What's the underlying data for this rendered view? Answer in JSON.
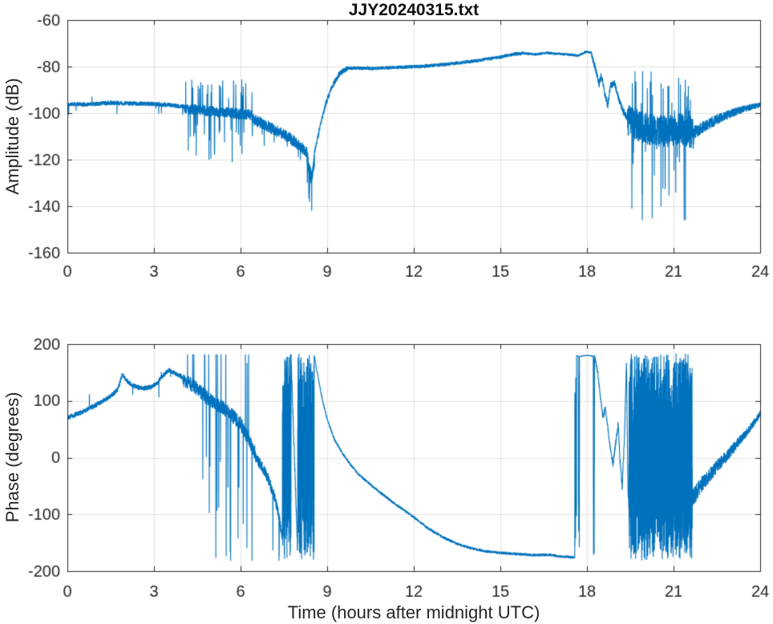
{
  "figure": {
    "palette": {
      "background": "#ffffff",
      "line": "#0072bd",
      "axis": "#242424",
      "grid": "#e2e2e2",
      "text": "#252525"
    }
  },
  "chart_data": [
    {
      "type": "line",
      "title": "JJY20240315.txt",
      "xlabel": "",
      "ylabel": "Amplitude (dB)",
      "xlim": [
        0,
        24
      ],
      "ylim": [
        -160,
        -60
      ],
      "xticks": [
        0,
        3,
        6,
        9,
        12,
        15,
        18,
        21,
        24
      ],
      "yticks": [
        -160,
        -140,
        -120,
        -100,
        -80,
        -60
      ],
      "grid": true,
      "line_color": "#0072bd",
      "segments": [
        {
          "t0": 0,
          "t1": 4.05,
          "base": [
            [
              0,
              -96
            ],
            [
              0.7,
              -96.3
            ],
            [
              1.5,
              -95.6
            ],
            [
              2.3,
              -95.9
            ],
            [
              3.1,
              -96.2
            ],
            [
              3.6,
              -96.6
            ],
            [
              4.05,
              -97.3
            ]
          ],
          "noise": 1.0,
          "spikes": {
            "p": 0.005,
            "lo": 2,
            "hi": 6,
            "dir": -1
          },
          "spikes2": {
            "p": 0.003,
            "lo": 2,
            "hi": 5,
            "dir": 1
          }
        },
        {
          "t0": 4.05,
          "t1": 6.4,
          "base": [
            [
              4.05,
              -98
            ],
            [
              5.2,
              -99.5
            ],
            [
              6.4,
              -100.8
            ]
          ],
          "noise": 2.4,
          "spikes": {
            "p": 0.045,
            "lo": 7,
            "hi": 14,
            "dir": 1
          },
          "spikes2": {
            "p": 0.04,
            "lo": 7,
            "hi": 22,
            "dir": -1
          },
          "clamp": [
            -130,
            -84
          ]
        },
        {
          "t0": 6.4,
          "t1": 8.28,
          "base": [
            [
              6.4,
              -102.5
            ],
            [
              7.0,
              -106
            ],
            [
              7.6,
              -110
            ],
            [
              8.0,
              -113.5
            ],
            [
              8.28,
              -116.5
            ]
          ],
          "noise": 2.6,
          "spikes": {
            "p": 0.02,
            "lo": 4,
            "hi": 11,
            "dir": -1
          }
        },
        {
          "t0": 8.28,
          "t1": 8.56,
          "base": [
            [
              8.28,
              -117
            ],
            [
              8.38,
              -124
            ],
            [
              8.44,
              -128
            ],
            [
              8.5,
              -125
            ],
            [
              8.56,
              -120
            ]
          ],
          "noise": 3.5,
          "spikes": {
            "p": 0.09,
            "lo": 4,
            "hi": 16,
            "dir": -1
          },
          "clamp": [
            -145,
            -108
          ]
        },
        {
          "t0": 8.56,
          "t1": 9.7,
          "base": [
            [
              8.56,
              -117
            ],
            [
              8.75,
              -106
            ],
            [
              8.95,
              -96
            ],
            [
              9.15,
              -89
            ],
            [
              9.4,
              -83.5
            ],
            [
              9.7,
              -80.6
            ]
          ],
          "noise": 1.3
        },
        {
          "t0": 9.7,
          "t1": 15.8,
          "base": [
            [
              9.7,
              -80.6
            ],
            [
              10.6,
              -80.8
            ],
            [
              11.4,
              -80.4
            ],
            [
              12.3,
              -79.9
            ],
            [
              13.2,
              -78.9
            ],
            [
              14.1,
              -77.6
            ],
            [
              15.0,
              -75.9
            ],
            [
              15.5,
              -74.6
            ],
            [
              15.8,
              -74.2
            ]
          ],
          "noise": 0.8
        },
        {
          "t0": 15.8,
          "t1": 18.15,
          "base": [
            [
              15.8,
              -74.2
            ],
            [
              16.2,
              -74.8
            ],
            [
              16.6,
              -74.1
            ],
            [
              17.0,
              -74.5
            ],
            [
              17.4,
              -74.9
            ],
            [
              17.7,
              -75.3
            ],
            [
              17.95,
              -73.7
            ],
            [
              18.15,
              -73.9
            ]
          ],
          "noise": 0.6
        },
        {
          "t0": 18.15,
          "t1": 19.4,
          "base": [
            [
              18.15,
              -74.3
            ],
            [
              18.3,
              -81
            ],
            [
              18.42,
              -87.5
            ],
            [
              18.5,
              -83.5
            ],
            [
              18.62,
              -92
            ],
            [
              18.72,
              -96.5
            ],
            [
              18.82,
              -88
            ],
            [
              18.95,
              -87
            ],
            [
              19.1,
              -94
            ],
            [
              19.25,
              -99
            ],
            [
              19.4,
              -102
            ]
          ],
          "noise": 1.6
        },
        {
          "t0": 19.4,
          "t1": 21.7,
          "base": [
            [
              19.4,
              -103
            ],
            [
              20.0,
              -106.5
            ],
            [
              20.7,
              -108
            ],
            [
              21.3,
              -107
            ],
            [
              21.7,
              -108.5
            ]
          ],
          "noise": 7,
          "spikes": {
            "p": 0.05,
            "lo": 8,
            "hi": 24,
            "dir": 1
          },
          "spikes2": {
            "p": 0.05,
            "lo": 8,
            "hi": 38,
            "dir": -1
          },
          "clamp": [
            -146,
            -82
          ]
        },
        {
          "t0": 21.7,
          "t1": 24.001,
          "base": [
            [
              21.7,
              -108.5
            ],
            [
              22.3,
              -104
            ],
            [
              22.9,
              -100.5
            ],
            [
              23.5,
              -98
            ],
            [
              24.01,
              -96.5
            ]
          ],
          "noise": 3,
          "noise1": 1.1
        }
      ]
    },
    {
      "type": "line",
      "title": "",
      "xlabel": "Time (hours after midnight UTC)",
      "ylabel": "Phase (degrees)",
      "xlim": [
        0,
        24
      ],
      "ylim": [
        -200,
        200
      ],
      "xticks": [
        0,
        3,
        6,
        9,
        12,
        15,
        18,
        21,
        24
      ],
      "yticks": [
        -200,
        -100,
        0,
        100,
        200
      ],
      "grid": true,
      "line_color": "#0072bd",
      "segments": [
        {
          "t0": 0,
          "t1": 4.0,
          "base": [
            [
              0,
              70
            ],
            [
              0.5,
              80
            ],
            [
              1.0,
              93
            ],
            [
              1.5,
              108
            ],
            [
              1.75,
              120
            ],
            [
              1.9,
              146
            ],
            [
              2.05,
              136
            ],
            [
              2.3,
              126
            ],
            [
              2.6,
              122
            ],
            [
              2.9,
              124
            ],
            [
              3.1,
              131
            ],
            [
              3.3,
              144
            ],
            [
              3.5,
              154
            ],
            [
              3.7,
              150
            ],
            [
              4.0,
              141
            ]
          ],
          "noise": 4.5,
          "spikes": {
            "p": 0.004,
            "lo": 10,
            "hi": 30,
            "dir": 0
          }
        },
        {
          "t0": 4.0,
          "t1": 6.5,
          "base": [
            [
              4.0,
              138
            ],
            [
              4.35,
              127
            ],
            [
              4.9,
              103
            ],
            [
              5.5,
              84
            ],
            [
              6.0,
              60
            ],
            [
              6.5,
              8
            ]
          ],
          "noise": 13,
          "spikes": {
            "p": 0.025,
            "lo": 80,
            "hi": 280,
            "dir": 1
          },
          "spikes2": {
            "p": 0.028,
            "lo": 80,
            "hi": 280,
            "dir": -1
          },
          "clamp": [
            -182,
            182
          ]
        },
        {
          "t0": 6.5,
          "t1": 7.45,
          "base": [
            [
              6.5,
              3
            ],
            [
              6.9,
              -30
            ],
            [
              7.15,
              -65
            ],
            [
              7.3,
              -95
            ],
            [
              7.45,
              -140
            ]
          ],
          "noise": 10,
          "spikes": {
            "p": 0.012,
            "lo": 60,
            "hi": 220,
            "dir": 0
          },
          "clamp": [
            -182,
            182
          ]
        },
        {
          "t0": 7.45,
          "t1": 7.75,
          "dt": 0.002,
          "mode": "uniform",
          "lo": -179,
          "hi": 182
        },
        {
          "t0": 7.75,
          "t1": 7.98,
          "base": [
            [
              7.75,
              176
            ],
            [
              7.98,
              -172
            ]
          ],
          "noise": 8
        },
        {
          "t0": 7.98,
          "t1": 8.55,
          "dt": 0.002,
          "mode": "uniform",
          "lo": -180,
          "hi": 183
        },
        {
          "t0": 8.55,
          "t1": 17.58,
          "base": [
            [
              8.55,
              180
            ],
            [
              8.7,
              138
            ],
            [
              8.85,
              98
            ],
            [
              9.0,
              68
            ],
            [
              9.25,
              32
            ],
            [
              9.5,
              10
            ],
            [
              9.8,
              -12
            ],
            [
              10.1,
              -30
            ],
            [
              10.6,
              -52
            ],
            [
              11.0,
              -68
            ],
            [
              11.3,
              -80
            ],
            [
              11.7,
              -94
            ],
            [
              12.0,
              -105
            ],
            [
              12.5,
              -125
            ],
            [
              13.0,
              -140
            ],
            [
              13.5,
              -152
            ],
            [
              14.0,
              -160
            ],
            [
              14.5,
              -165
            ],
            [
              15.0,
              -168
            ],
            [
              15.6,
              -170
            ],
            [
              16.2,
              -172
            ],
            [
              16.7,
              -171
            ],
            [
              17.0,
              -174
            ],
            [
              17.3,
              -175
            ],
            [
              17.58,
              -176
            ]
          ],
          "noise": 2.5
        },
        {
          "t0": 17.58,
          "t1": 17.64,
          "dt": 0.002,
          "mode": "uniform",
          "lo": -178,
          "hi": 181
        },
        {
          "t0": 17.64,
          "t1": 17.7,
          "base": [
            [
              17.64,
              179
            ],
            [
              17.7,
              179
            ]
          ],
          "noise": 1
        },
        {
          "t0": 17.7,
          "t1": 17.74,
          "dt": 0.002,
          "mode": "uniform",
          "lo": -178,
          "hi": 181
        },
        {
          "t0": 17.74,
          "t1": 18.22,
          "base": [
            [
              17.74,
              178
            ],
            [
              17.95,
              180
            ],
            [
              18.1,
              179.5
            ],
            [
              18.22,
              178.5
            ]
          ],
          "noise": 0.8
        },
        {
          "t0": 18.22,
          "t1": 18.26,
          "dt": 0.002,
          "mode": "uniform",
          "lo": -178,
          "hi": 181
        },
        {
          "t0": 18.26,
          "t1": 18.9,
          "base": [
            [
              18.26,
              179
            ],
            [
              18.38,
              148
            ],
            [
              18.48,
              100
            ],
            [
              18.56,
              70
            ],
            [
              18.63,
              88
            ],
            [
              18.7,
              62
            ],
            [
              18.78,
              28
            ],
            [
              18.9,
              -12
            ]
          ],
          "noise": 4
        },
        {
          "t0": 18.9,
          "t1": 19.45,
          "base": [
            [
              18.9,
              -12
            ],
            [
              19.0,
              28
            ],
            [
              19.08,
              58
            ],
            [
              19.15,
              -8
            ],
            [
              19.22,
              -52
            ],
            [
              19.3,
              40
            ],
            [
              19.37,
              168
            ],
            [
              19.42,
              -55
            ],
            [
              19.45,
              -85
            ]
          ],
          "noise": 6
        },
        {
          "t0": 19.45,
          "t1": 21.65,
          "dt": 0.002,
          "mode": "uniform",
          "lo": -182,
          "hi": 184
        },
        {
          "t0": 21.65,
          "t1": 24.001,
          "base": [
            [
              21.65,
              -72
            ],
            [
              22.0,
              -45
            ],
            [
              22.4,
              -22
            ],
            [
              22.8,
              0
            ],
            [
              23.2,
              25
            ],
            [
              23.6,
              48
            ],
            [
              24.01,
              78
            ]
          ],
          "noise": 16,
          "noise1": 6
        }
      ]
    }
  ]
}
